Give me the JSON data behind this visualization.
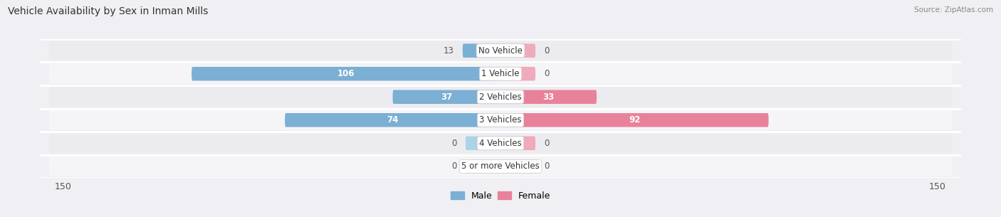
{
  "title": "Vehicle Availability by Sex in Inman Mills",
  "source": "Source: ZipAtlas.com",
  "categories": [
    "No Vehicle",
    "1 Vehicle",
    "2 Vehicles",
    "3 Vehicles",
    "4 Vehicles",
    "5 or more Vehicles"
  ],
  "male_values": [
    13,
    106,
    37,
    74,
    0,
    0
  ],
  "female_values": [
    0,
    0,
    33,
    92,
    0,
    0
  ],
  "male_color": "#7bafd4",
  "female_color": "#e8829a",
  "male_color_zero": "#add3e8",
  "female_color_zero": "#f0aabb",
  "row_bg_color": "#ececf0",
  "row_bg_color2": "#f5f5f8",
  "bg_color": "#f0f0f4",
  "max_value": 150,
  "label_color_inside": "#ffffff",
  "label_color_outside": "#555555",
  "title_fontsize": 10,
  "source_fontsize": 7.5,
  "axis_fontsize": 9,
  "category_fontsize": 8.5,
  "value_fontsize": 8.5
}
